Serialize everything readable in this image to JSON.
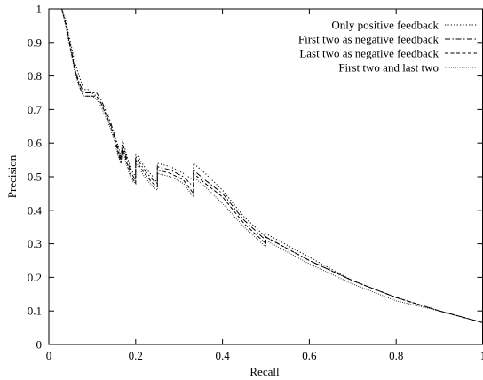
{
  "chart_data": {
    "type": "line",
    "title": "",
    "xlabel": "Recall",
    "ylabel": "Precision",
    "xlim": [
      0,
      1
    ],
    "ylim": [
      0,
      1
    ],
    "xticks": [
      "0",
      "0.2",
      "0.4",
      "0.6",
      "0.8",
      "1"
    ],
    "yticks": [
      "0",
      "0.1",
      "0.2",
      "0.3",
      "0.4",
      "0.5",
      "0.6",
      "0.7",
      "0.8",
      "0.9",
      "1"
    ],
    "grid": false,
    "legend_position": "top-right",
    "series": [
      {
        "name": "Only positive feedback",
        "dash": "dotted",
        "x": [
          0.03,
          0.04,
          0.05,
          0.06,
          0.07,
          0.08,
          0.09,
          0.1,
          0.11,
          0.12,
          0.13,
          0.14,
          0.15,
          0.16,
          0.166,
          0.17,
          0.18,
          0.19,
          0.2,
          0.2,
          0.22,
          0.24,
          0.25,
          0.25,
          0.28,
          0.31,
          0.333,
          0.333,
          0.36,
          0.4,
          0.45,
          0.5,
          0.5,
          0.6,
          0.7,
          0.8,
          0.9,
          1.0
        ],
        "y": [
          1.0,
          0.96,
          0.9,
          0.84,
          0.8,
          0.76,
          0.76,
          0.75,
          0.74,
          0.72,
          0.69,
          0.66,
          0.63,
          0.59,
          0.56,
          0.61,
          0.56,
          0.52,
          0.5,
          0.57,
          0.53,
          0.5,
          0.48,
          0.54,
          0.53,
          0.51,
          0.49,
          0.54,
          0.51,
          0.46,
          0.38,
          0.32,
          0.33,
          0.26,
          0.19,
          0.14,
          0.1,
          0.065
        ]
      },
      {
        "name": "First two as negative feedback",
        "dash": "dashdot",
        "x": [
          0.03,
          0.04,
          0.05,
          0.06,
          0.07,
          0.08,
          0.09,
          0.1,
          0.11,
          0.12,
          0.13,
          0.14,
          0.15,
          0.16,
          0.166,
          0.17,
          0.18,
          0.19,
          0.2,
          0.2,
          0.22,
          0.24,
          0.25,
          0.25,
          0.28,
          0.31,
          0.333,
          0.333,
          0.36,
          0.4,
          0.45,
          0.5,
          0.5,
          0.6,
          0.7,
          0.8,
          0.9,
          1.0
        ],
        "y": [
          1.0,
          0.95,
          0.89,
          0.82,
          0.78,
          0.75,
          0.75,
          0.75,
          0.75,
          0.73,
          0.7,
          0.67,
          0.63,
          0.58,
          0.55,
          0.6,
          0.55,
          0.51,
          0.49,
          0.56,
          0.52,
          0.49,
          0.48,
          0.53,
          0.52,
          0.5,
          0.47,
          0.52,
          0.49,
          0.45,
          0.37,
          0.31,
          0.32,
          0.25,
          0.19,
          0.14,
          0.1,
          0.065
        ]
      },
      {
        "name": "Last two as negative feedback",
        "dash": "dashed",
        "x": [
          0.03,
          0.04,
          0.05,
          0.06,
          0.07,
          0.08,
          0.09,
          0.1,
          0.11,
          0.12,
          0.13,
          0.14,
          0.15,
          0.16,
          0.166,
          0.17,
          0.18,
          0.19,
          0.2,
          0.2,
          0.22,
          0.24,
          0.25,
          0.25,
          0.28,
          0.31,
          0.333,
          0.333,
          0.36,
          0.4,
          0.45,
          0.5,
          0.5,
          0.6,
          0.7,
          0.8,
          0.9,
          1.0
        ],
        "y": [
          1.0,
          0.95,
          0.88,
          0.82,
          0.77,
          0.74,
          0.74,
          0.74,
          0.74,
          0.72,
          0.69,
          0.66,
          0.62,
          0.57,
          0.54,
          0.59,
          0.54,
          0.5,
          0.48,
          0.55,
          0.51,
          0.48,
          0.47,
          0.52,
          0.51,
          0.49,
          0.45,
          0.51,
          0.48,
          0.44,
          0.36,
          0.3,
          0.32,
          0.25,
          0.19,
          0.14,
          0.1,
          0.065
        ]
      },
      {
        "name": "First two and last two",
        "dash": "fine-dotted",
        "x": [
          0.03,
          0.04,
          0.05,
          0.06,
          0.07,
          0.08,
          0.09,
          0.1,
          0.11,
          0.12,
          0.13,
          0.14,
          0.15,
          0.16,
          0.166,
          0.17,
          0.18,
          0.19,
          0.2,
          0.2,
          0.22,
          0.24,
          0.25,
          0.25,
          0.28,
          0.31,
          0.333,
          0.333,
          0.36,
          0.4,
          0.45,
          0.5,
          0.5,
          0.6,
          0.7,
          0.8,
          0.9,
          1.0
        ],
        "y": [
          1.0,
          0.94,
          0.88,
          0.81,
          0.77,
          0.74,
          0.74,
          0.74,
          0.73,
          0.71,
          0.68,
          0.65,
          0.61,
          0.56,
          0.54,
          0.58,
          0.53,
          0.49,
          0.48,
          0.54,
          0.5,
          0.47,
          0.46,
          0.51,
          0.5,
          0.48,
          0.44,
          0.5,
          0.47,
          0.42,
          0.35,
          0.29,
          0.31,
          0.24,
          0.18,
          0.13,
          0.1,
          0.065
        ]
      }
    ]
  }
}
